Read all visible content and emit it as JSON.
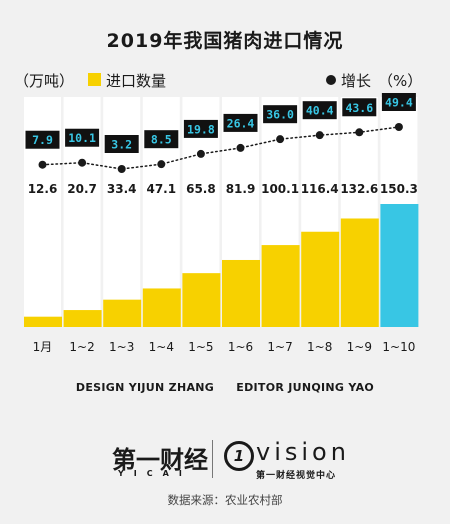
{
  "title": "2019年我国猪肉进口情况",
  "legend": {
    "unit": "（万吨）",
    "bar_label": "进口数量",
    "line_label": "增长",
    "line_unit": "（%）"
  },
  "colors": {
    "bar": "#f7d100",
    "bar_highlight": "#38c6e4",
    "box": "#111111",
    "box_text": "#38c6e4",
    "line": "#1a1a1a"
  },
  "chart_data": {
    "type": "bar",
    "categories": [
      "1月",
      "1~2",
      "1~3",
      "1~4",
      "1~5",
      "1~6",
      "1~7",
      "1~8",
      "1~9",
      "1~10"
    ],
    "series": [
      {
        "name": "进口数量",
        "values": [
          12.6,
          20.7,
          33.4,
          47.1,
          65.8,
          81.9,
          100.1,
          116.4,
          132.6,
          150.3
        ]
      },
      {
        "name": "增长",
        "type": "line",
        "values": [
          7.9,
          10.1,
          3.2,
          8.5,
          19.8,
          26.4,
          36.0,
          40.4,
          43.6,
          49.4
        ]
      }
    ],
    "value_labels": [
      "12.6",
      "20.7",
      "33.4",
      "47.1",
      "65.8",
      "81.9",
      "100.1",
      "116.4",
      "132.6",
      "150.3"
    ],
    "growth_labels": [
      "7.9",
      "10.1",
      "3.2",
      "8.5",
      "19.8",
      "26.4",
      "36.0",
      "40.4",
      "43.6",
      "49.4"
    ],
    "highlight_index": 9,
    "ylim": [
      0,
      150.3
    ],
    "growth_range": [
      3.2,
      49.4
    ]
  },
  "credit": {
    "design": "DESIGN YIJUN ZHANG",
    "editor": "EDITOR JUNQING YAO"
  },
  "logo_left": {
    "name": "第一财经",
    "sub": "YICAI"
  },
  "logo_right": {
    "mark": "1",
    "name": "vision",
    "sub": "第一财经视觉中心"
  },
  "source": "数据来源：农业农村部"
}
